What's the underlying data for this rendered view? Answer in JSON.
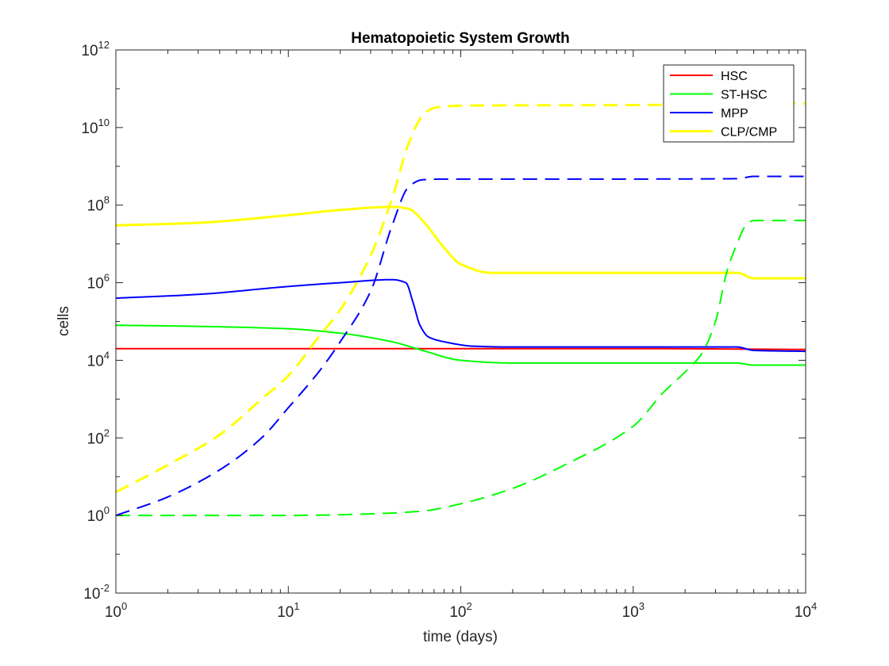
{
  "chart_data": {
    "type": "line",
    "title": "Hematopoietic System Growth",
    "xlabel": "time (days)",
    "ylabel": "cells",
    "xscale": "log",
    "yscale": "log",
    "xlim": [
      1,
      10000
    ],
    "ylim": [
      0.01,
      1000000000000
    ],
    "x_ticks": [
      1,
      10,
      100,
      1000,
      10000
    ],
    "x_tick_labels": [
      {
        "base": "10",
        "exp": "0"
      },
      {
        "base": "10",
        "exp": "1"
      },
      {
        "base": "10",
        "exp": "2"
      },
      {
        "base": "10",
        "exp": "3"
      },
      {
        "base": "10",
        "exp": "4"
      }
    ],
    "y_ticks": [
      0.01,
      1,
      100,
      10000,
      1000000,
      100000000,
      10000000000,
      1000000000000
    ],
    "y_tick_labels": [
      {
        "base": "10",
        "exp": "-2"
      },
      {
        "base": "10",
        "exp": "0"
      },
      {
        "base": "10",
        "exp": "2"
      },
      {
        "base": "10",
        "exp": "4"
      },
      {
        "base": "10",
        "exp": "6"
      },
      {
        "base": "10",
        "exp": "8"
      },
      {
        "base": "10",
        "exp": "10"
      },
      {
        "base": "10",
        "exp": "12"
      }
    ],
    "grid": false,
    "legend_position": "top-right",
    "legend": [
      {
        "name": "HSC",
        "color": "#ff0000"
      },
      {
        "name": "ST-HSC",
        "color": "#00ff00"
      },
      {
        "name": "MPP",
        "color": "#0000ff"
      },
      {
        "name": "CLP/CMP",
        "color": "#ffff00"
      }
    ],
    "series": [
      {
        "name": "HSC",
        "style": "solid",
        "color": "#ff0000",
        "x": [
          1,
          10,
          100,
          1000,
          10000
        ],
        "y": [
          20000,
          20000,
          20000,
          20000,
          19000
        ]
      },
      {
        "name": "ST-HSC",
        "style": "solid",
        "color": "#00ff00",
        "x": [
          1,
          3,
          10,
          20,
          40,
          60,
          100,
          200,
          1000,
          4000,
          5000,
          10000
        ],
        "y": [
          80000,
          75000,
          65000,
          50000,
          30000,
          18000,
          10000,
          8500,
          8500,
          8500,
          7500,
          7500
        ]
      },
      {
        "name": "MPP",
        "style": "solid",
        "color": "#0000ff",
        "x": [
          1,
          3,
          10,
          20,
          40,
          48,
          53,
          58,
          65,
          80,
          120,
          200,
          1000,
          4000,
          5000,
          10000
        ],
        "y": [
          400000,
          500000,
          800000,
          1000000,
          1200000,
          1000000,
          300000,
          80000,
          40000,
          30000,
          23000,
          22000,
          22000,
          22000,
          18000,
          17000
        ]
      },
      {
        "name": "CLP/CMP",
        "style": "solid",
        "color": "#ffff00",
        "x": [
          1,
          3,
          10,
          20,
          40,
          50,
          60,
          80,
          100,
          150,
          1000,
          4000,
          5000,
          10000
        ],
        "y": [
          30000000,
          35000000,
          55000000,
          75000000,
          90000000,
          80000000,
          40000000,
          8000000,
          3000000,
          1800000,
          1800000,
          1800000,
          1300000,
          1300000
        ]
      },
      {
        "name": "ST-HSC",
        "style": "dashed",
        "color": "#00ff00",
        "x": [
          1,
          10,
          30,
          60,
          100,
          200,
          400,
          1000,
          1500,
          2000,
          2500,
          3000,
          3500,
          4000,
          4500,
          5000,
          10000
        ],
        "y": [
          1,
          1,
          1.1,
          1.3,
          2,
          5,
          20,
          200,
          1500,
          5000,
          15000,
          100000,
          2000000,
          10000000,
          30000000,
          40000000,
          40000000
        ]
      },
      {
        "name": "MPP",
        "style": "dashed",
        "color": "#0000ff",
        "x": [
          1,
          2,
          4,
          7,
          10,
          15,
          20,
          30,
          40,
          50,
          60,
          80,
          200,
          1000,
          4000,
          5000,
          10000
        ],
        "y": [
          1,
          3,
          15,
          100,
          600,
          5000,
          30000,
          600000,
          30000000,
          300000000,
          450000000,
          470000000,
          470000000,
          470000000,
          480000000,
          550000000,
          550000000
        ]
      },
      {
        "name": "CLP/CMP",
        "style": "dashed",
        "color": "#ffff00",
        "x": [
          1,
          2,
          4,
          7,
          10,
          15,
          20,
          30,
          40,
          50,
          60,
          70,
          80,
          120,
          1000,
          10000
        ],
        "y": [
          4,
          20,
          120,
          1000,
          4000,
          40000,
          200000,
          5000000,
          150000000,
          4000000000,
          20000000000,
          32000000000,
          35000000000,
          37000000000,
          38000000000,
          42000000000
        ]
      }
    ]
  }
}
